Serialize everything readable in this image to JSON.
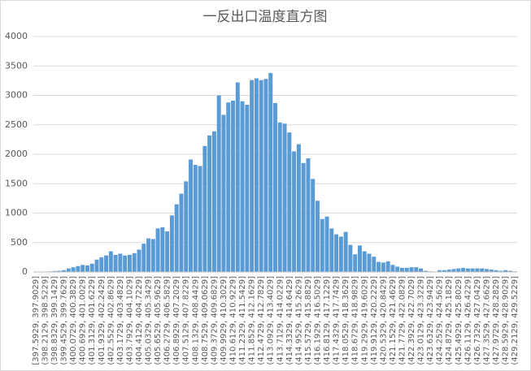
{
  "chart_data": {
    "type": "bar",
    "title": "一反出口温度直方图",
    "categories": [
      "[397.5929, 397.9029]",
      null,
      "(398.2129, 398.5229]",
      null,
      "(398.8329, 399.1429]",
      null,
      "(399.4529, 399.7629]",
      null,
      "(400.0729, 400.3829]",
      null,
      "(400.6929, 401.0029]",
      null,
      "(401.3129, 401.6229]",
      null,
      "(401.9329, 402.2429]",
      null,
      "(402.5529, 402.8629]",
      null,
      "(403.1729, 403.4829]",
      null,
      "(403.7929, 404.1029]",
      null,
      "(404.4129, 404.7229]",
      null,
      "(405.0329, 405.3429]",
      null,
      "(405.6529, 405.9629]",
      null,
      "(406.2729, 406.5829]",
      null,
      "(406.8929, 407.2029]",
      null,
      "(407.5129, 407.8229]",
      null,
      "(408.1329, 408.4429]",
      null,
      "(408.7529, 409.0629]",
      null,
      "(409.3729, 409.6829]",
      null,
      "(409.9929, 410.3029]",
      null,
      "(410.6129, 410.9229]",
      null,
      "(411.2329, 411.5429]",
      null,
      "(411.8529, 412.1629]",
      null,
      "(412.4729, 412.7829]",
      null,
      "(413.0929, 413.4029]",
      null,
      "(413.7129, 414.0229]",
      null,
      "(414.3329, 414.6429]",
      null,
      "(414.9529, 415.2629]",
      null,
      "(415.5729, 415.8829]",
      null,
      "(416.1929, 416.5029]",
      null,
      "(416.8129, 417.1229]",
      null,
      "(417.4329, 417.7429]",
      null,
      "(418.0529, 418.3629]",
      null,
      "(418.6729, 418.9829]",
      null,
      "(419.2929, 419.6029]",
      null,
      "(419.9129, 420.2229]",
      null,
      "(420.5329, 420.8429]",
      null,
      "(421.1529, 421.4629]",
      null,
      "(421.7729, 422.0829]",
      null,
      "(422.3929, 422.7029]",
      null,
      "(423.0129, 423.3229]",
      null,
      "(423.6329, 423.9429]",
      null,
      "(424.2529, 424.5629]",
      null,
      "(424.8729, 425.1829]",
      null,
      "(425.4929, 425.8029]",
      null,
      "(426.1129, 426.4229]",
      null,
      "(426.7329, 427.0429]",
      null,
      "(427.3529, 427.6629]",
      null,
      "(427.9729, 428.2829]",
      null,
      "(428.5929, 428.9029]",
      null,
      "(429.2129, 429.5229]"
    ],
    "values": [
      0,
      0,
      5,
      10,
      15,
      20,
      30,
      60,
      80,
      100,
      120,
      110,
      140,
      210,
      250,
      280,
      350,
      290,
      310,
      280,
      290,
      320,
      380,
      480,
      570,
      560,
      740,
      760,
      690,
      960,
      1150,
      1330,
      1540,
      1910,
      1820,
      1800,
      2140,
      2320,
      2390,
      3000,
      2670,
      2880,
      2910,
      3220,
      2900,
      2840,
      3260,
      3290,
      3260,
      3280,
      3380,
      2870,
      2540,
      2520,
      2370,
      2050,
      2170,
      1850,
      1930,
      1580,
      1210,
      900,
      940,
      740,
      640,
      600,
      680,
      460,
      300,
      450,
      350,
      310,
      260,
      170,
      160,
      180,
      120,
      90,
      70,
      70,
      80,
      80,
      60,
      20,
      10,
      0,
      30,
      30,
      40,
      50,
      60,
      70,
      60,
      60,
      60,
      60,
      50,
      40,
      30,
      20,
      30,
      20,
      10
    ],
    "color": "#5b9bd5",
    "ylim": [
      0,
      4000
    ],
    "yticks": [
      0,
      500,
      1000,
      1500,
      2000,
      2500,
      3000,
      3500,
      4000
    ],
    "grid": true
  }
}
